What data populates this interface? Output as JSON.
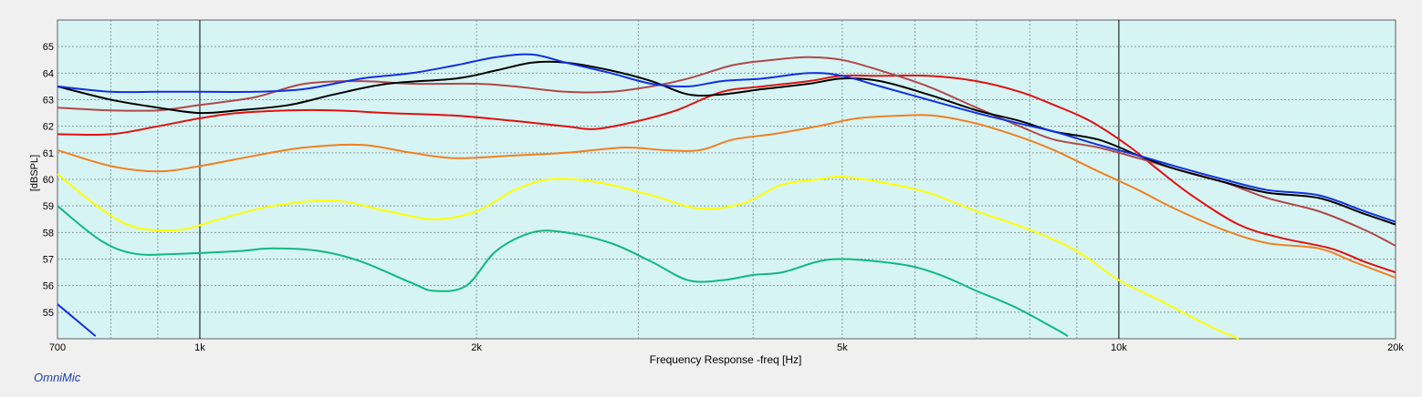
{
  "app_name": "OmniMic",
  "chart_data": {
    "type": "line",
    "xlabel": "Frequency Response -freq [Hz]",
    "ylabel": "[dBSPL]",
    "xscale": "log",
    "xlim": [
      700,
      20000
    ],
    "ylim": [
      54,
      66
    ],
    "grid": true,
    "x_ticks": [
      {
        "value": 700,
        "label": "700"
      },
      {
        "value": 1000,
        "label": "1k"
      },
      {
        "value": 2000,
        "label": "2k"
      },
      {
        "value": 5000,
        "label": "5k"
      },
      {
        "value": 10000,
        "label": "10k"
      },
      {
        "value": 20000,
        "label": "20k"
      }
    ],
    "y_ticks": [
      55,
      56,
      57,
      58,
      59,
      60,
      61,
      62,
      63,
      64,
      65
    ],
    "series": [
      {
        "color": "#10b882",
        "points": [
          [
            700,
            59.0
          ],
          [
            780,
            57.7
          ],
          [
            850,
            57.2
          ],
          [
            950,
            57.2
          ],
          [
            1100,
            57.3
          ],
          [
            1200,
            57.4
          ],
          [
            1350,
            57.3
          ],
          [
            1500,
            56.9
          ],
          [
            1700,
            56.1
          ],
          [
            1800,
            55.8
          ],
          [
            1950,
            56.0
          ],
          [
            2100,
            57.3
          ],
          [
            2300,
            58.0
          ],
          [
            2500,
            58.0
          ],
          [
            2800,
            57.6
          ],
          [
            3100,
            56.9
          ],
          [
            3400,
            56.2
          ],
          [
            3700,
            56.2
          ],
          [
            4000,
            56.4
          ],
          [
            4300,
            56.5
          ],
          [
            4700,
            56.9
          ],
          [
            5000,
            57.0
          ],
          [
            5500,
            56.9
          ],
          [
            6000,
            56.7
          ],
          [
            6500,
            56.3
          ],
          [
            7000,
            55.8
          ],
          [
            7700,
            55.2
          ],
          [
            8500,
            54.4
          ],
          [
            8800,
            54.1
          ]
        ]
      },
      {
        "color": "#ffff00",
        "points": [
          [
            700,
            60.2
          ],
          [
            780,
            58.9
          ],
          [
            850,
            58.2
          ],
          [
            950,
            58.1
          ],
          [
            1050,
            58.5
          ],
          [
            1200,
            59.0
          ],
          [
            1400,
            59.2
          ],
          [
            1600,
            58.8
          ],
          [
            1800,
            58.5
          ],
          [
            2000,
            58.8
          ],
          [
            2200,
            59.6
          ],
          [
            2400,
            60.0
          ],
          [
            2700,
            59.9
          ],
          [
            3100,
            59.4
          ],
          [
            3500,
            58.9
          ],
          [
            3900,
            59.1
          ],
          [
            4300,
            59.8
          ],
          [
            4700,
            60.0
          ],
          [
            5000,
            60.1
          ],
          [
            5500,
            59.9
          ],
          [
            6200,
            59.5
          ],
          [
            7000,
            58.8
          ],
          [
            8000,
            58.1
          ],
          [
            9000,
            57.3
          ],
          [
            10000,
            56.2
          ],
          [
            11000,
            55.5
          ],
          [
            12500,
            54.5
          ],
          [
            13500,
            54.0
          ]
        ]
      },
      {
        "color": "#f08020",
        "points": [
          [
            700,
            61.1
          ],
          [
            800,
            60.5
          ],
          [
            900,
            60.3
          ],
          [
            1000,
            60.5
          ],
          [
            1150,
            60.9
          ],
          [
            1300,
            61.2
          ],
          [
            1500,
            61.3
          ],
          [
            1700,
            61.0
          ],
          [
            1900,
            60.8
          ],
          [
            2200,
            60.9
          ],
          [
            2500,
            61.0
          ],
          [
            2900,
            61.2
          ],
          [
            3200,
            61.1
          ],
          [
            3500,
            61.1
          ],
          [
            3800,
            61.5
          ],
          [
            4200,
            61.7
          ],
          [
            4700,
            62.0
          ],
          [
            5200,
            62.3
          ],
          [
            5800,
            62.4
          ],
          [
            6300,
            62.4
          ],
          [
            7000,
            62.1
          ],
          [
            7800,
            61.6
          ],
          [
            8500,
            61.1
          ],
          [
            9500,
            60.3
          ],
          [
            10500,
            59.6
          ],
          [
            11500,
            58.9
          ],
          [
            13000,
            58.1
          ],
          [
            14500,
            57.6
          ],
          [
            16500,
            57.4
          ],
          [
            18000,
            56.9
          ],
          [
            20000,
            56.3
          ]
        ]
      },
      {
        "color": "#e01010",
        "points": [
          [
            700,
            61.7
          ],
          [
            800,
            61.7
          ],
          [
            900,
            62.0
          ],
          [
            1000,
            62.3
          ],
          [
            1100,
            62.5
          ],
          [
            1250,
            62.6
          ],
          [
            1400,
            62.6
          ],
          [
            1600,
            62.5
          ],
          [
            1900,
            62.4
          ],
          [
            2200,
            62.2
          ],
          [
            2500,
            62.0
          ],
          [
            2700,
            61.9
          ],
          [
            3000,
            62.2
          ],
          [
            3300,
            62.6
          ],
          [
            3700,
            63.3
          ],
          [
            4100,
            63.5
          ],
          [
            4600,
            63.7
          ],
          [
            5000,
            63.9
          ],
          [
            5500,
            63.9
          ],
          [
            6200,
            63.9
          ],
          [
            7000,
            63.7
          ],
          [
            7800,
            63.3
          ],
          [
            8500,
            62.8
          ],
          [
            9300,
            62.2
          ],
          [
            10300,
            61.2
          ],
          [
            11000,
            60.4
          ],
          [
            12000,
            59.4
          ],
          [
            13500,
            58.3
          ],
          [
            15000,
            57.8
          ],
          [
            17000,
            57.4
          ],
          [
            18500,
            56.9
          ],
          [
            20000,
            56.5
          ]
        ]
      },
      {
        "color": "#b04848",
        "points": [
          [
            700,
            62.7
          ],
          [
            800,
            62.6
          ],
          [
            900,
            62.6
          ],
          [
            1000,
            62.8
          ],
          [
            1150,
            63.1
          ],
          [
            1300,
            63.6
          ],
          [
            1500,
            63.7
          ],
          [
            1700,
            63.6
          ],
          [
            2000,
            63.6
          ],
          [
            2200,
            63.5
          ],
          [
            2500,
            63.3
          ],
          [
            2800,
            63.3
          ],
          [
            3100,
            63.5
          ],
          [
            3400,
            63.8
          ],
          [
            3800,
            64.3
          ],
          [
            4200,
            64.5
          ],
          [
            4600,
            64.6
          ],
          [
            5000,
            64.5
          ],
          [
            5500,
            64.1
          ],
          [
            6200,
            63.5
          ],
          [
            7000,
            62.7
          ],
          [
            7800,
            62.0
          ],
          [
            8500,
            61.5
          ],
          [
            9500,
            61.2
          ],
          [
            10500,
            60.8
          ],
          [
            11500,
            60.4
          ],
          [
            13000,
            59.9
          ],
          [
            14500,
            59.3
          ],
          [
            16500,
            58.8
          ],
          [
            18500,
            58.1
          ],
          [
            20000,
            57.5
          ]
        ]
      },
      {
        "color": "#000000",
        "points": [
          [
            700,
            63.5
          ],
          [
            800,
            63.0
          ],
          [
            900,
            62.7
          ],
          [
            1000,
            62.5
          ],
          [
            1100,
            62.6
          ],
          [
            1250,
            62.8
          ],
          [
            1400,
            63.2
          ],
          [
            1600,
            63.6
          ],
          [
            1900,
            63.8
          ],
          [
            2100,
            64.1
          ],
          [
            2300,
            64.4
          ],
          [
            2500,
            64.4
          ],
          [
            2800,
            64.1
          ],
          [
            3100,
            63.7
          ],
          [
            3400,
            63.2
          ],
          [
            3700,
            63.2
          ],
          [
            4100,
            63.4
          ],
          [
            4600,
            63.6
          ],
          [
            5000,
            63.8
          ],
          [
            5500,
            63.7
          ],
          [
            6200,
            63.2
          ],
          [
            7000,
            62.6
          ],
          [
            7800,
            62.2
          ],
          [
            8500,
            61.8
          ],
          [
            9500,
            61.5
          ],
          [
            10500,
            60.9
          ],
          [
            11500,
            60.4
          ],
          [
            13000,
            59.9
          ],
          [
            14500,
            59.5
          ],
          [
            16500,
            59.3
          ],
          [
            18500,
            58.7
          ],
          [
            20000,
            58.3
          ]
        ]
      },
      {
        "color": "#1030e0",
        "points": [
          [
            700,
            63.5
          ],
          [
            800,
            63.3
          ],
          [
            900,
            63.3
          ],
          [
            1000,
            63.3
          ],
          [
            1150,
            63.3
          ],
          [
            1300,
            63.4
          ],
          [
            1500,
            63.8
          ],
          [
            1700,
            64.0
          ],
          [
            1900,
            64.3
          ],
          [
            2100,
            64.6
          ],
          [
            2300,
            64.7
          ],
          [
            2500,
            64.4
          ],
          [
            2800,
            64.0
          ],
          [
            3100,
            63.6
          ],
          [
            3400,
            63.5
          ],
          [
            3700,
            63.7
          ],
          [
            4100,
            63.8
          ],
          [
            4600,
            64.0
          ],
          [
            5000,
            63.9
          ],
          [
            5500,
            63.5
          ],
          [
            6200,
            63.0
          ],
          [
            7000,
            62.5
          ],
          [
            7800,
            62.1
          ],
          [
            8500,
            61.8
          ],
          [
            9500,
            61.3
          ],
          [
            10500,
            60.9
          ],
          [
            11500,
            60.5
          ],
          [
            13000,
            60.0
          ],
          [
            14500,
            59.6
          ],
          [
            16500,
            59.4
          ],
          [
            18500,
            58.8
          ],
          [
            20000,
            58.4
          ]
        ]
      },
      {
        "color": "#1030e0",
        "points": [
          [
            700,
            55.3
          ],
          [
            740,
            54.6
          ],
          [
            770,
            54.1
          ]
        ]
      }
    ]
  }
}
